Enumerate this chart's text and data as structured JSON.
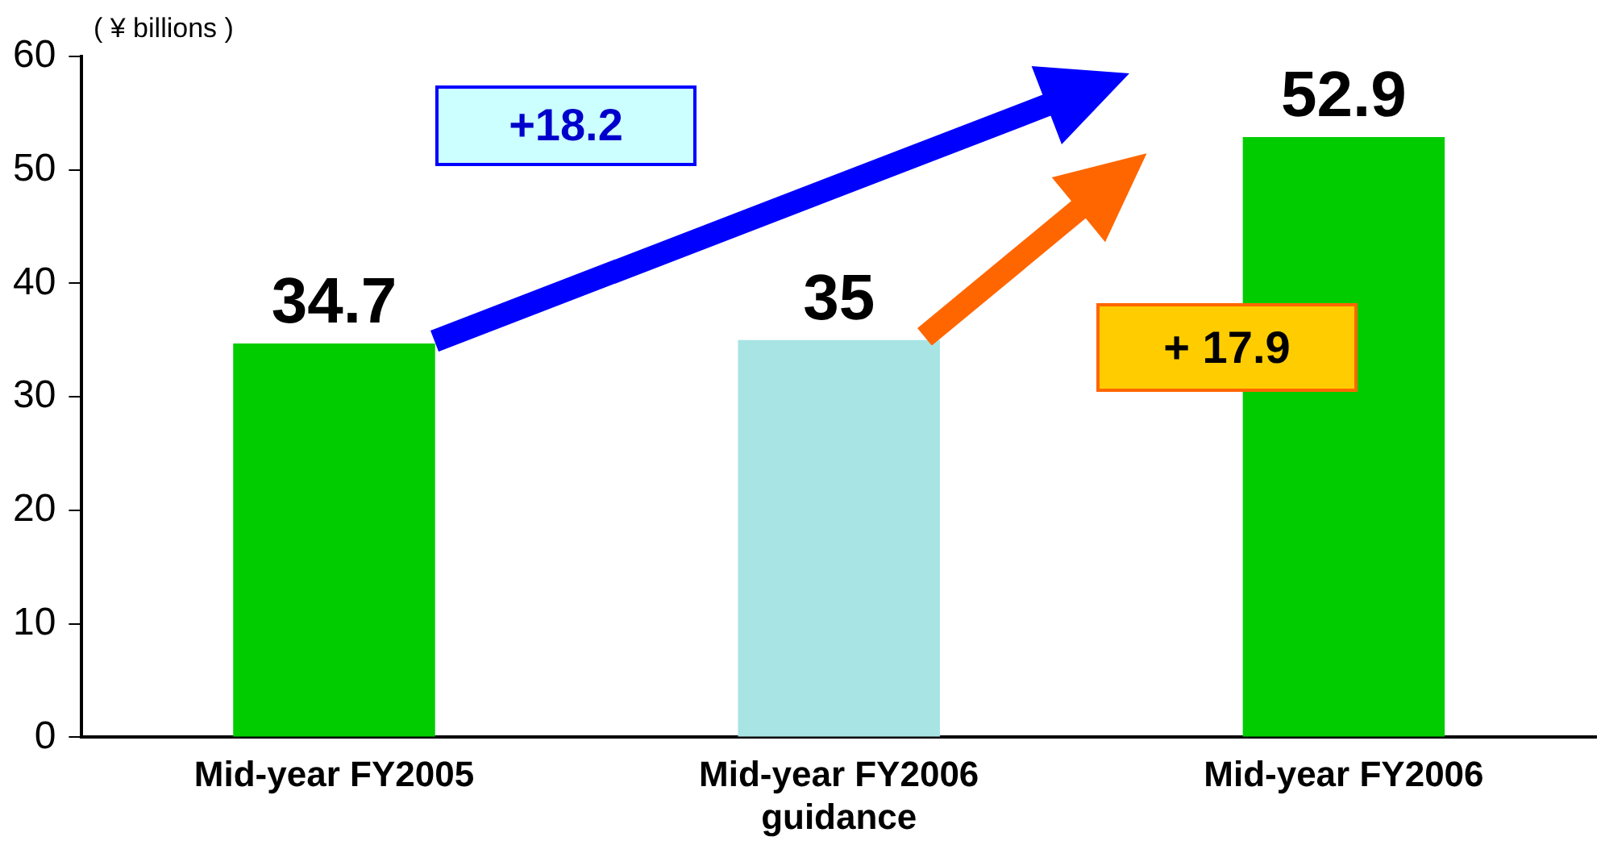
{
  "chart_data": {
    "type": "bar",
    "ylabel": "( ¥ billions )",
    "categories": [
      "Mid-year FY2005",
      "Mid-year FY2006 guidance",
      "Mid-year FY2006"
    ],
    "values": [
      34.7,
      35,
      52.9
    ],
    "colors": [
      "#00cc00",
      "#a8e4e4",
      "#00cc00"
    ],
    "ylim": [
      0,
      60
    ],
    "yticks": [
      0,
      10,
      20,
      30,
      40,
      50,
      60
    ],
    "grid": false,
    "legend": false,
    "data_labels": true,
    "annotations": [
      "+18.2",
      "+ 17.9"
    ]
  }
}
